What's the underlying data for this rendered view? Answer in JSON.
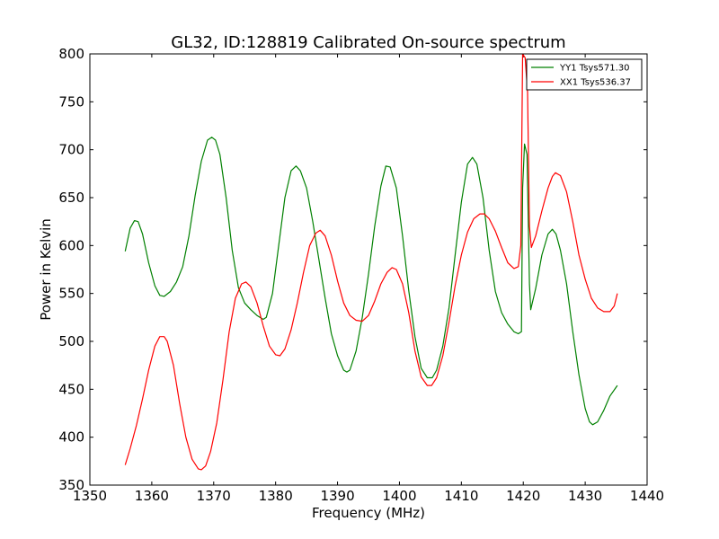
{
  "chart_data": {
    "type": "line",
    "title": "GL32, ID:128819 Calibrated On-source spectrum",
    "xlabel": "Frequency (MHz)",
    "ylabel": "Power in Kelvin",
    "xlim": [
      1350,
      1440
    ],
    "ylim": [
      350,
      800
    ],
    "xticks": [
      1350,
      1360,
      1370,
      1380,
      1390,
      1400,
      1410,
      1420,
      1430,
      1440
    ],
    "yticks": [
      350,
      400,
      450,
      500,
      550,
      600,
      650,
      700,
      750,
      800
    ],
    "grid": false,
    "legend_position": "top-right",
    "series": [
      {
        "name": "YY1 Tsys571.30",
        "color": "#008000",
        "points": [
          [
            1355.7,
            594
          ],
          [
            1356.5,
            618
          ],
          [
            1357.2,
            626
          ],
          [
            1357.8,
            625
          ],
          [
            1358.5,
            612
          ],
          [
            1359.5,
            582
          ],
          [
            1360.5,
            558
          ],
          [
            1361.3,
            548
          ],
          [
            1362,
            547
          ],
          [
            1363,
            552
          ],
          [
            1364,
            562
          ],
          [
            1365,
            578
          ],
          [
            1366,
            610
          ],
          [
            1367,
            652
          ],
          [
            1368,
            688
          ],
          [
            1369,
            710
          ],
          [
            1369.7,
            713
          ],
          [
            1370.3,
            710
          ],
          [
            1371,
            695
          ],
          [
            1372,
            650
          ],
          [
            1373,
            595
          ],
          [
            1374,
            556
          ],
          [
            1375,
            540
          ],
          [
            1376,
            533
          ],
          [
            1377,
            527
          ],
          [
            1378,
            523
          ],
          [
            1378.5,
            525
          ],
          [
            1379.5,
            550
          ],
          [
            1380.5,
            600
          ],
          [
            1381.5,
            650
          ],
          [
            1382.5,
            678
          ],
          [
            1383.3,
            683
          ],
          [
            1384,
            678
          ],
          [
            1385,
            660
          ],
          [
            1386,
            625
          ],
          [
            1387,
            585
          ],
          [
            1388,
            545
          ],
          [
            1389,
            508
          ],
          [
            1390,
            485
          ],
          [
            1391,
            470
          ],
          [
            1391.5,
            468
          ],
          [
            1392,
            470
          ],
          [
            1393,
            490
          ],
          [
            1394,
            525
          ],
          [
            1395,
            570
          ],
          [
            1396,
            620
          ],
          [
            1397,
            662
          ],
          [
            1397.8,
            683
          ],
          [
            1398.5,
            682
          ],
          [
            1399.5,
            660
          ],
          [
            1400.5,
            610
          ],
          [
            1401.5,
            553
          ],
          [
            1402.5,
            505
          ],
          [
            1403.5,
            472
          ],
          [
            1404.5,
            462
          ],
          [
            1405.3,
            462
          ],
          [
            1406,
            470
          ],
          [
            1407,
            495
          ],
          [
            1408,
            535
          ],
          [
            1409,
            590
          ],
          [
            1410,
            645
          ],
          [
            1411,
            685
          ],
          [
            1411.8,
            692
          ],
          [
            1412.5,
            685
          ],
          [
            1413.5,
            650
          ],
          [
            1414.5,
            595
          ],
          [
            1415.5,
            552
          ],
          [
            1416.5,
            530
          ],
          [
            1417.5,
            518
          ],
          [
            1418.5,
            510
          ],
          [
            1419.2,
            508
          ],
          [
            1419.7,
            510
          ],
          [
            1419.9,
            660
          ],
          [
            1420.2,
            706
          ],
          [
            1420.6,
            695
          ],
          [
            1421,
            560
          ],
          [
            1421.2,
            533
          ],
          [
            1422,
            555
          ],
          [
            1423,
            590
          ],
          [
            1424,
            612
          ],
          [
            1424.7,
            617
          ],
          [
            1425.3,
            612
          ],
          [
            1426,
            595
          ],
          [
            1427,
            560
          ],
          [
            1428,
            510
          ],
          [
            1429,
            465
          ],
          [
            1430,
            430
          ],
          [
            1430.7,
            416
          ],
          [
            1431.2,
            413
          ],
          [
            1432,
            416
          ],
          [
            1433,
            428
          ],
          [
            1434,
            443
          ],
          [
            1435.2,
            454
          ]
        ]
      },
      {
        "name": "XX1 Tsys536.37",
        "color": "#ff0000",
        "points": [
          [
            1355.7,
            371
          ],
          [
            1356.5,
            388
          ],
          [
            1357.5,
            412
          ],
          [
            1358.5,
            440
          ],
          [
            1359.5,
            470
          ],
          [
            1360.5,
            495
          ],
          [
            1361.3,
            505
          ],
          [
            1362,
            505
          ],
          [
            1362.5,
            500
          ],
          [
            1363.5,
            475
          ],
          [
            1364.5,
            435
          ],
          [
            1365.5,
            400
          ],
          [
            1366.5,
            377
          ],
          [
            1367.5,
            367
          ],
          [
            1368,
            366
          ],
          [
            1368.7,
            370
          ],
          [
            1369.5,
            385
          ],
          [
            1370.5,
            415
          ],
          [
            1371.5,
            460
          ],
          [
            1372.5,
            510
          ],
          [
            1373.5,
            545
          ],
          [
            1374.5,
            560
          ],
          [
            1375.2,
            562
          ],
          [
            1376,
            557
          ],
          [
            1377,
            540
          ],
          [
            1378,
            516
          ],
          [
            1379,
            495
          ],
          [
            1380,
            486
          ],
          [
            1380.7,
            485
          ],
          [
            1381.5,
            492
          ],
          [
            1382.5,
            512
          ],
          [
            1383.5,
            540
          ],
          [
            1384.5,
            572
          ],
          [
            1385.5,
            600
          ],
          [
            1386.5,
            613
          ],
          [
            1387.2,
            616
          ],
          [
            1388,
            610
          ],
          [
            1389,
            590
          ],
          [
            1390,
            563
          ],
          [
            1391,
            540
          ],
          [
            1392,
            527
          ],
          [
            1393,
            522
          ],
          [
            1394,
            521
          ],
          [
            1395,
            527
          ],
          [
            1396,
            542
          ],
          [
            1397,
            560
          ],
          [
            1398,
            572
          ],
          [
            1398.8,
            577
          ],
          [
            1399.5,
            575
          ],
          [
            1400.5,
            560
          ],
          [
            1401.5,
            530
          ],
          [
            1402.5,
            490
          ],
          [
            1403.5,
            463
          ],
          [
            1404.5,
            454
          ],
          [
            1405.2,
            454
          ],
          [
            1406,
            462
          ],
          [
            1407,
            485
          ],
          [
            1408,
            520
          ],
          [
            1409,
            558
          ],
          [
            1410,
            590
          ],
          [
            1411,
            614
          ],
          [
            1412,
            628
          ],
          [
            1413,
            633
          ],
          [
            1413.7,
            633
          ],
          [
            1414.5,
            628
          ],
          [
            1415.5,
            615
          ],
          [
            1416.5,
            598
          ],
          [
            1417.5,
            582
          ],
          [
            1418.5,
            576
          ],
          [
            1419.2,
            578
          ],
          [
            1419.6,
            600
          ],
          [
            1419.9,
            800
          ],
          [
            1420.3,
            796
          ],
          [
            1420.7,
            760
          ],
          [
            1421,
            620
          ],
          [
            1421.3,
            598
          ],
          [
            1422,
            610
          ],
          [
            1423,
            636
          ],
          [
            1424,
            660
          ],
          [
            1424.7,
            672
          ],
          [
            1425.2,
            676
          ],
          [
            1426,
            673
          ],
          [
            1427,
            656
          ],
          [
            1428,
            625
          ],
          [
            1429,
            590
          ],
          [
            1430,
            565
          ],
          [
            1431,
            545
          ],
          [
            1432,
            535
          ],
          [
            1433,
            531
          ],
          [
            1434,
            531
          ],
          [
            1434.7,
            537
          ],
          [
            1435.2,
            550
          ]
        ]
      }
    ]
  }
}
